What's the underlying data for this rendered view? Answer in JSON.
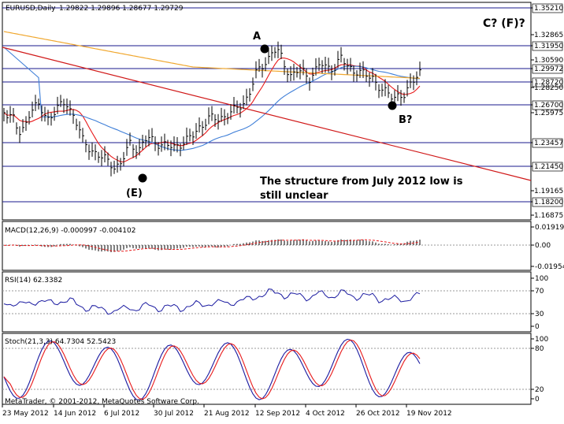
{
  "app": {
    "title": "EURUSD,Daily",
    "ohlc": "1.29822 1.29896 1.28677 1.29729",
    "copyright": "MetaTrader, © 2001-2012, MetaQuotes Software Corp."
  },
  "colors": {
    "bar": "#000000",
    "ma_fast": "#e8191a",
    "ma_mid": "#3f7fd8",
    "ma_slow": "#f0a830",
    "trend": "#d01818",
    "hline": "#1a1a8c",
    "macd_signal": "#e8191a",
    "rsi": "#1a1aa0",
    "stoch_main": "#1a1aa0",
    "stoch_signal": "#e8191a"
  },
  "price_panel": {
    "price_labels": [
      "1.35210",
      "1.32865",
      "1.31950",
      "1.30590",
      "1.29972",
      "1.28720",
      "1.28250",
      "1.26700",
      "1.25975",
      "1.23457",
      "1.21450",
      "1.19165",
      "1.18200",
      "1.16875"
    ],
    "hlines": [
      {
        "value": "1.35210",
        "kind": "box"
      },
      {
        "value": "1.31950",
        "kind": "box"
      },
      {
        "value": "1.29972",
        "kind": "box"
      },
      {
        "value": "1.28720",
        "kind": "box"
      },
      {
        "value": "1.26700",
        "kind": "box"
      },
      {
        "value": "1.23457",
        "kind": "box"
      },
      {
        "value": "1.21450",
        "kind": "box"
      },
      {
        "value": "1.18200",
        "kind": "box"
      }
    ],
    "annotations": {
      "A": "A",
      "B": "B?",
      "E": "(E)",
      "C": "C?  (F)?",
      "note_line1": "The structure from July 2012 low is",
      "note_line2": "still unclear"
    }
  },
  "macd_panel": {
    "title": "MACD(12,26,9) -0.000997 -0.004102",
    "labels": [
      "0.019194",
      "0.00",
      "-0.01954"
    ]
  },
  "rsi_panel": {
    "title": "RSI(14) 62.3382",
    "labels": [
      "100",
      "70",
      "30",
      "0"
    ]
  },
  "stoch_panel": {
    "title": "Stoch(21,3,3) 64.7304 52.5423",
    "labels": [
      "100",
      "80",
      "20",
      "0"
    ]
  },
  "x_axis": {
    "labels": [
      "23 May 2012",
      "14 Jun 2012",
      "6 Jul 2012",
      "30 Jul 2012",
      "21 Aug 2012",
      "12 Sep 2012",
      "4 Oct 2012",
      "26 Oct 2012",
      "19 Nov 2012"
    ]
  }
}
